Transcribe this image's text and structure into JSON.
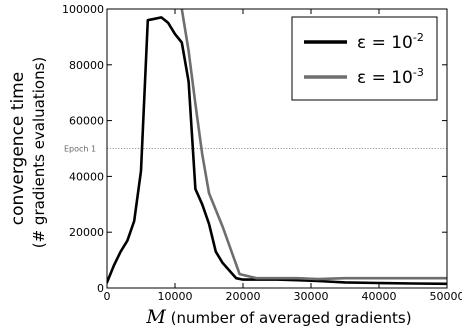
{
  "chart_data": {
    "type": "line",
    "xlabel_symbol": "M",
    "xlabel": "(number of averaged gradients)",
    "ylabel_line1": "convergence time",
    "ylabel_line2": "(# gradients evaluations)",
    "xlim": [
      0,
      50000
    ],
    "ylim": [
      0,
      100000
    ],
    "xticks": [
      0,
      10000,
      20000,
      30000,
      40000,
      50000
    ],
    "yticks": [
      0,
      20000,
      40000,
      60000,
      80000,
      100000
    ],
    "xtick_labels": [
      "0",
      "10000",
      "20000",
      "30000",
      "40000",
      "50000"
    ],
    "ytick_labels": [
      "0",
      "20000",
      "40000",
      "60000",
      "80000",
      "100000"
    ],
    "grid": false,
    "legend_position": "top-right",
    "annotation": {
      "text": "Epoch 1",
      "y": 50000,
      "style": "dotted horizontal line"
    },
    "series": [
      {
        "name": "ε = 10-2",
        "name_base": "ε = 10",
        "name_exp": "-2",
        "color": "#000000",
        "x": [
          0,
          1000,
          2000,
          3000,
          4000,
          5000,
          6000,
          7000,
          8000,
          9000,
          10000,
          11000,
          12000,
          13000,
          14000,
          15000,
          16000,
          17000,
          19000,
          20000,
          22000,
          25000,
          28000,
          31000,
          35000,
          40000,
          45000,
          50000
        ],
        "y": [
          2000,
          8000,
          13000,
          17000,
          24000,
          42000,
          96000,
          96500,
          97000,
          95000,
          91000,
          88000,
          74000,
          35500,
          30000,
          23000,
          13000,
          9000,
          3500,
          3000,
          3000,
          3000,
          2800,
          2500,
          2000,
          1800,
          1600,
          1500
        ]
      },
      {
        "name": "ε = 10-3",
        "name_base": "ε = 10",
        "name_exp": "-3",
        "color": "#6e6e6e",
        "x": [
          11000,
          12000,
          13000,
          14000,
          15000,
          17000,
          19500,
          22000,
          25000,
          28000,
          31000,
          35000,
          40000,
          45000,
          50000
        ],
        "y": [
          100000,
          85000,
          66000,
          48000,
          34000,
          22000,
          5000,
          3500,
          3500,
          3500,
          3200,
          3500,
          3500,
          3500,
          3500
        ]
      }
    ]
  }
}
